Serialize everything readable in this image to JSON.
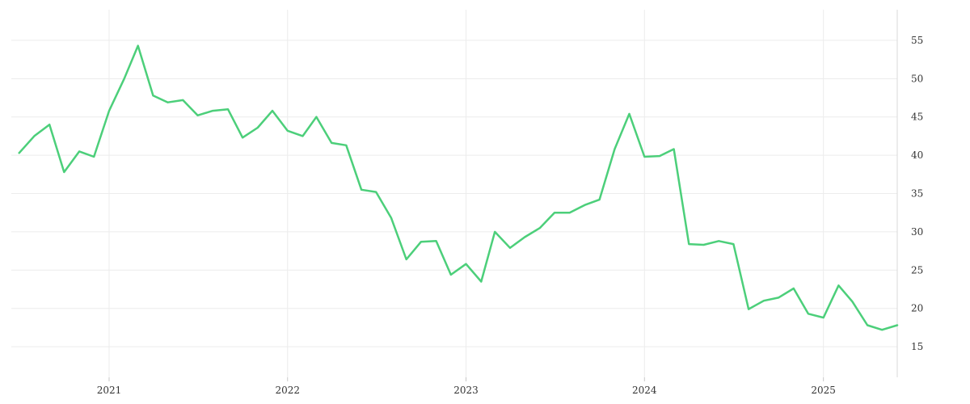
{
  "chart_data": {
    "type": "line",
    "title": "",
    "xlabel": "",
    "ylabel": "",
    "x_ticks": [
      "2021",
      "2022",
      "2023",
      "2024",
      "2025"
    ],
    "y_ticks": [
      15,
      20,
      25,
      30,
      35,
      40,
      45,
      50,
      55
    ],
    "xlim": [
      "2020-06-15",
      "2025-06-01"
    ],
    "ylim": [
      11,
      59
    ],
    "y_axis_side": "right",
    "grid": true,
    "legend": "none",
    "colors": {
      "series": "#4ccf7a",
      "grid": "#ececec",
      "axis": "#d9d9d9"
    },
    "series": [
      {
        "x": [
          "2020-07",
          "2020-08",
          "2020-09",
          "2020-10",
          "2020-11",
          "2020-12",
          "2021-01",
          "2021-02",
          "2021-03",
          "2021-04",
          "2021-05",
          "2021-06",
          "2021-07",
          "2021-08",
          "2021-09",
          "2021-10",
          "2021-11",
          "2021-12",
          "2022-01",
          "2022-02",
          "2022-03",
          "2022-04",
          "2022-05",
          "2022-06",
          "2022-07",
          "2022-08",
          "2022-09",
          "2022-10",
          "2022-11",
          "2022-12",
          "2023-01",
          "2023-02",
          "2023-03",
          "2023-04",
          "2023-05",
          "2023-06",
          "2023-07",
          "2023-08",
          "2023-09",
          "2023-10",
          "2023-11",
          "2023-12",
          "2024-01",
          "2024-02",
          "2024-03",
          "2024-04",
          "2024-05",
          "2024-06",
          "2024-07",
          "2024-08",
          "2024-09",
          "2024-10",
          "2024-11",
          "2024-12",
          "2025-01",
          "2025-02",
          "2025-03",
          "2025-04",
          "2025-05",
          "2025-06"
        ],
        "values": [
          40.3,
          42.5,
          44.0,
          37.8,
          40.5,
          39.8,
          45.8,
          50.0,
          54.3,
          47.8,
          46.9,
          47.2,
          45.2,
          45.8,
          46.0,
          42.3,
          43.6,
          45.8,
          43.2,
          42.5,
          45.0,
          41.6,
          41.3,
          35.5,
          35.2,
          31.8,
          26.4,
          28.7,
          28.8,
          24.4,
          25.8,
          23.5,
          30.0,
          27.9,
          29.3,
          30.5,
          32.5,
          32.5,
          33.5,
          34.2,
          40.8,
          45.4,
          39.8,
          39.9,
          40.8,
          28.4,
          28.3,
          28.8,
          28.4,
          19.9,
          21.0,
          21.4,
          22.6,
          19.3,
          18.8,
          23.0,
          20.9,
          17.8,
          17.2,
          17.8
        ]
      }
    ]
  }
}
